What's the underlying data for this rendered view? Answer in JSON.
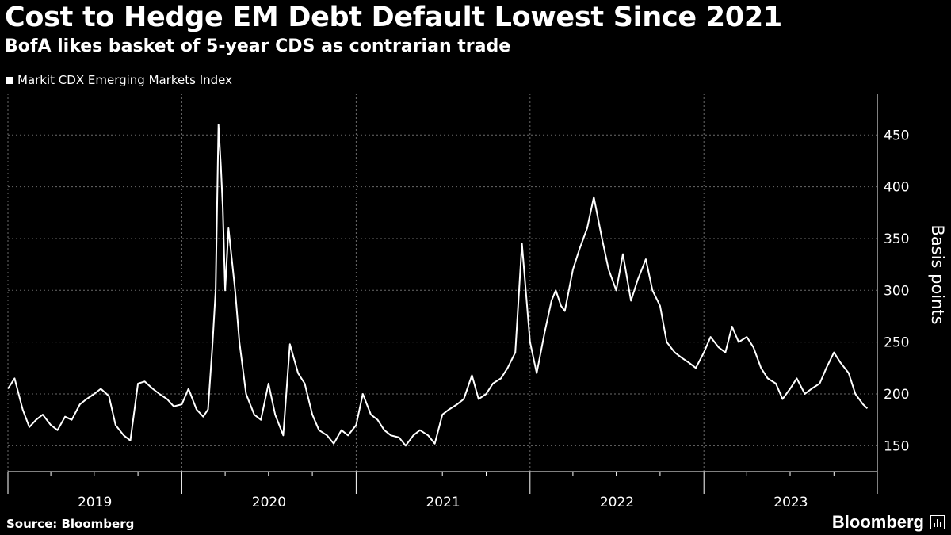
{
  "header": {
    "title": "Cost to Hedge EM Debt Default Lowest Since 2021",
    "subtitle": "BofA likes basket of 5-year CDS as contrarian trade"
  },
  "footer": {
    "source": "Source: Bloomberg",
    "brand": "Bloomberg"
  },
  "chart_data": {
    "type": "line",
    "series": [
      {
        "name": "Markit CDX Emerging Markets Index",
        "color": "#ffffff",
        "x": [
          "2019-01-01",
          "2019-01-15",
          "2019-02-01",
          "2019-02-15",
          "2019-03-01",
          "2019-03-15",
          "2019-04-01",
          "2019-04-15",
          "2019-05-01",
          "2019-05-15",
          "2019-06-01",
          "2019-06-15",
          "2019-07-01",
          "2019-07-15",
          "2019-08-01",
          "2019-08-15",
          "2019-09-01",
          "2019-09-15",
          "2019-10-01",
          "2019-10-15",
          "2019-11-01",
          "2019-11-15",
          "2019-12-01",
          "2019-12-15",
          "2020-01-01",
          "2020-01-15",
          "2020-02-01",
          "2020-02-15",
          "2020-02-25",
          "2020-03-05",
          "2020-03-12",
          "2020-03-18",
          "2020-03-23",
          "2020-03-27",
          "2020-04-01",
          "2020-04-08",
          "2020-04-15",
          "2020-04-22",
          "2020-05-01",
          "2020-05-15",
          "2020-06-01",
          "2020-06-15",
          "2020-07-01",
          "2020-07-15",
          "2020-08-01",
          "2020-08-15",
          "2020-09-01",
          "2020-09-15",
          "2020-10-01",
          "2020-10-15",
          "2020-11-01",
          "2020-11-15",
          "2020-12-01",
          "2020-12-15",
          "2021-01-01",
          "2021-01-15",
          "2021-02-01",
          "2021-02-15",
          "2021-03-01",
          "2021-03-15",
          "2021-04-01",
          "2021-04-15",
          "2021-05-01",
          "2021-05-15",
          "2021-06-01",
          "2021-06-15",
          "2021-07-01",
          "2021-07-15",
          "2021-08-01",
          "2021-08-15",
          "2021-09-01",
          "2021-09-15",
          "2021-10-01",
          "2021-10-15",
          "2021-11-01",
          "2021-11-15",
          "2021-12-01",
          "2021-12-15",
          "2022-01-01",
          "2022-01-15",
          "2022-02-01",
          "2022-02-15",
          "2022-02-24",
          "2022-03-07",
          "2022-03-15",
          "2022-04-01",
          "2022-04-15",
          "2022-05-01",
          "2022-05-15",
          "2022-06-01",
          "2022-06-15",
          "2022-07-01",
          "2022-07-15",
          "2022-08-01",
          "2022-08-15",
          "2022-09-01",
          "2022-09-15",
          "2022-10-01",
          "2022-10-15",
          "2022-11-01",
          "2022-11-15",
          "2022-12-01",
          "2022-12-15",
          "2023-01-01",
          "2023-01-15",
          "2023-02-01",
          "2023-02-15",
          "2023-03-01",
          "2023-03-15",
          "2023-04-01",
          "2023-04-15",
          "2023-05-01",
          "2023-05-15",
          "2023-06-01",
          "2023-06-15",
          "2023-07-01",
          "2023-07-15",
          "2023-08-01",
          "2023-08-15",
          "2023-09-01",
          "2023-09-15",
          "2023-10-01",
          "2023-10-15",
          "2023-11-01",
          "2023-11-15",
          "2023-12-01",
          "2023-12-10"
        ],
        "values": [
          205,
          215,
          185,
          168,
          175,
          180,
          170,
          165,
          178,
          175,
          190,
          195,
          200,
          205,
          198,
          170,
          160,
          155,
          210,
          212,
          205,
          200,
          195,
          188,
          190,
          205,
          185,
          178,
          185,
          245,
          300,
          460,
          420,
          380,
          300,
          360,
          330,
          300,
          250,
          200,
          180,
          175,
          210,
          180,
          160,
          248,
          220,
          210,
          180,
          165,
          160,
          152,
          165,
          160,
          170,
          200,
          180,
          175,
          165,
          160,
          158,
          150,
          160,
          165,
          160,
          152,
          180,
          185,
          190,
          195,
          218,
          195,
          200,
          210,
          215,
          225,
          240,
          345,
          250,
          220,
          260,
          290,
          300,
          285,
          280,
          320,
          340,
          360,
          390,
          350,
          320,
          300,
          335,
          290,
          310,
          330,
          300,
          285,
          250,
          240,
          235,
          230,
          225,
          240,
          255,
          245,
          240,
          265,
          250,
          255,
          245,
          225,
          215,
          210,
          195,
          205,
          215,
          200,
          205,
          210,
          225,
          240,
          230,
          220,
          200,
          190,
          186
        ]
      }
    ],
    "xlim": [
      "2019-01-01",
      "2023-12-31"
    ],
    "x_tick_labels": [
      "2019",
      "2020",
      "2021",
      "2022",
      "2023"
    ],
    "ylim": [
      125,
      490
    ],
    "y_ticks": [
      150,
      200,
      250,
      300,
      350,
      400,
      450
    ],
    "ylabel": "Basis points",
    "grid": true,
    "legend_position": "top-left"
  }
}
